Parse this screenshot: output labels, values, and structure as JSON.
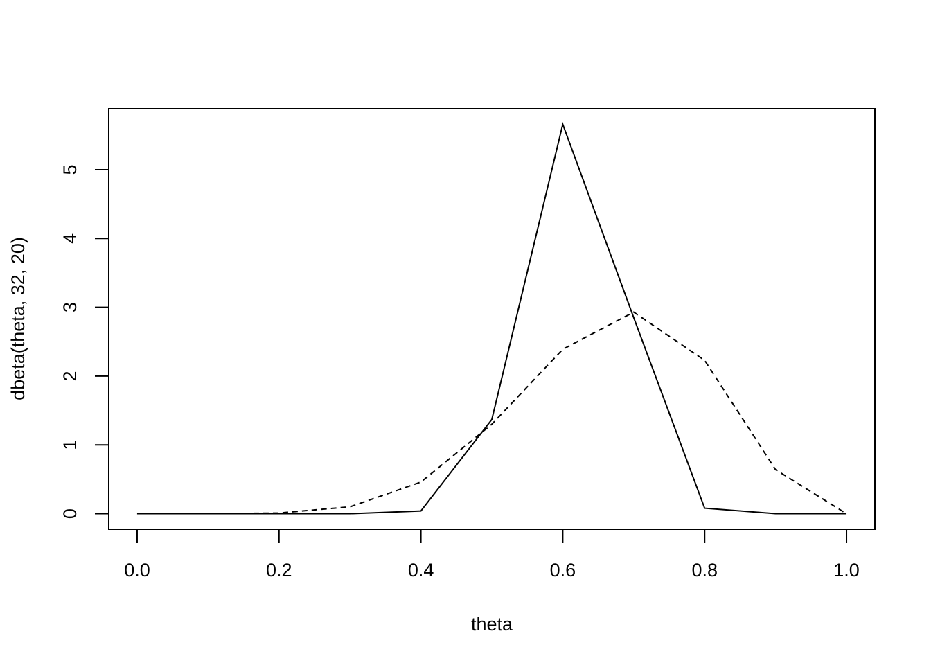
{
  "chart_data": {
    "type": "line",
    "xlabel": "theta",
    "ylabel": "dbeta(theta, 32, 20)",
    "x": [
      0.0,
      0.1,
      0.2,
      0.3,
      0.4,
      0.5,
      0.6,
      0.7,
      0.8,
      0.9,
      1.0
    ],
    "series": [
      {
        "color": "#000000",
        "linestyle": "solid",
        "values": [
          0,
          0,
          0,
          0,
          0.04,
          1.37,
          5.66,
          2.85,
          0.08,
          0,
          0
        ]
      },
      {
        "color": "#000000",
        "linestyle": "dashed",
        "values": [
          0,
          0,
          0.01,
          0.1,
          0.46,
          1.3,
          2.39,
          2.93,
          2.23,
          0.64,
          0
        ]
      }
    ],
    "xlim": [
      -0.04,
      1.04
    ],
    "ylim": [
      -0.226,
      5.886
    ],
    "xticks": [
      {
        "value": 0,
        "label": "0.0"
      },
      0.2,
      0.4,
      0.6,
      0.8,
      {
        "value": 1,
        "label": "1.0"
      }
    ],
    "yticks": [
      0,
      1,
      2,
      3,
      4,
      5
    ]
  }
}
